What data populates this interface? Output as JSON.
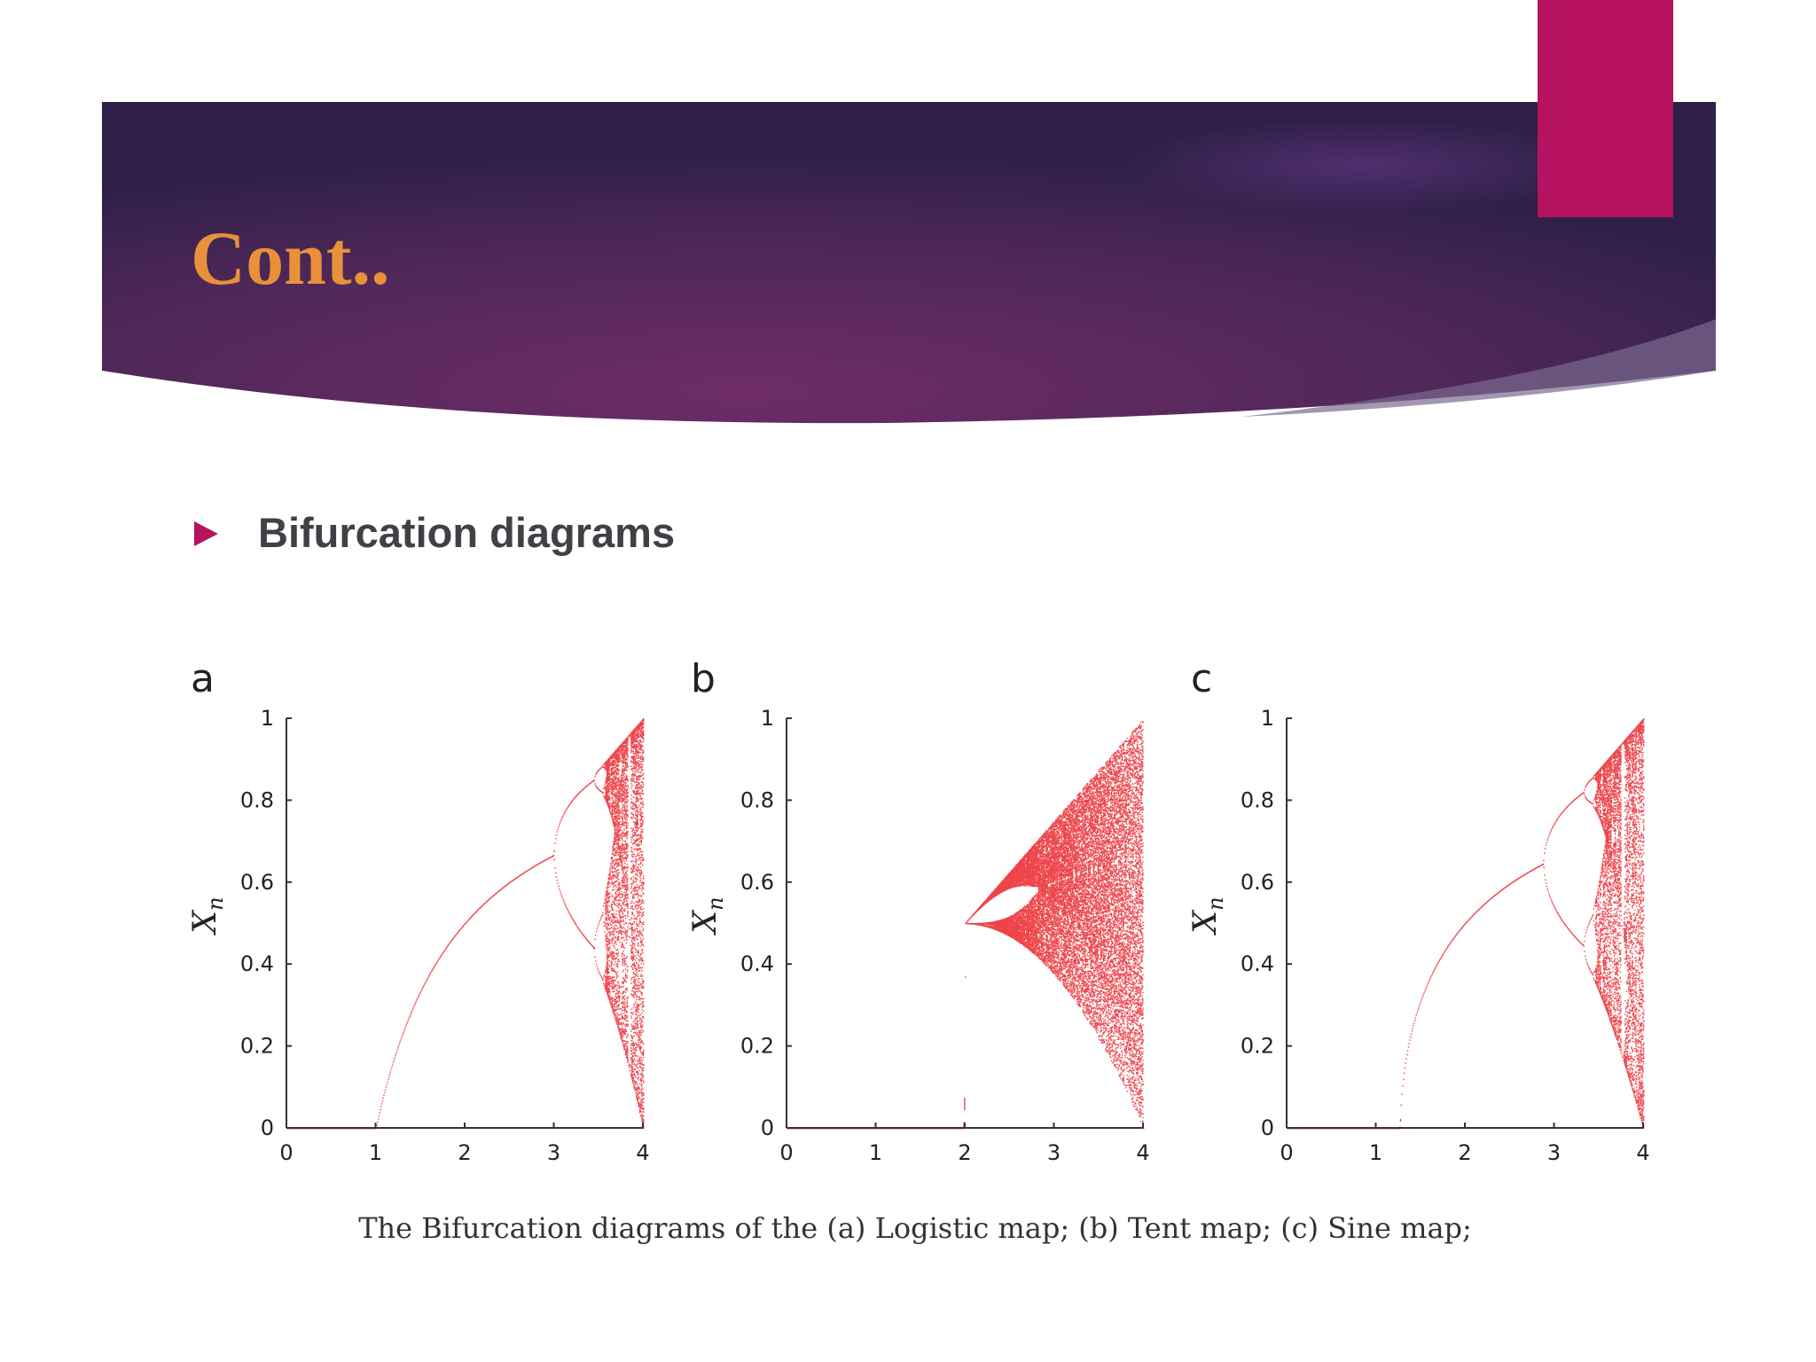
{
  "header": {
    "title": "Cont.."
  },
  "bullet": "Bifurcation diagrams",
  "figure": {
    "panels": [
      {
        "label": "a",
        "ylabel": {
          "symbol": "X",
          "subscript": "n"
        },
        "xlim": [
          0,
          4
        ],
        "ylim": [
          0,
          1
        ],
        "xticks": [
          0,
          1,
          2,
          3,
          4
        ],
        "yticks": [
          0,
          0.2,
          0.4,
          0.6,
          0.8,
          1
        ],
        "color": "#e8141c"
      },
      {
        "label": "b",
        "ylabel": {
          "symbol": "X",
          "subscript": "n"
        },
        "xlim": [
          0,
          4
        ],
        "ylim": [
          0,
          1
        ],
        "xticks": [
          0,
          1,
          2,
          3,
          4
        ],
        "yticks": [
          0,
          0.2,
          0.4,
          0.6,
          0.8,
          1
        ],
        "color": "#e8141c"
      },
      {
        "label": "c",
        "ylabel": {
          "symbol": "X",
          "subscript": "n"
        },
        "xlim": [
          0,
          4
        ],
        "ylim": [
          0,
          1
        ],
        "xticks": [
          0,
          1,
          2,
          3,
          4
        ],
        "yticks": [
          0,
          0.2,
          0.4,
          0.6,
          0.8,
          1
        ],
        "color": "#e8141c"
      }
    ],
    "caption": "The Bifurcation diagrams of the (a) Logistic map; (b) Tent map; (c) Sine map;"
  }
}
